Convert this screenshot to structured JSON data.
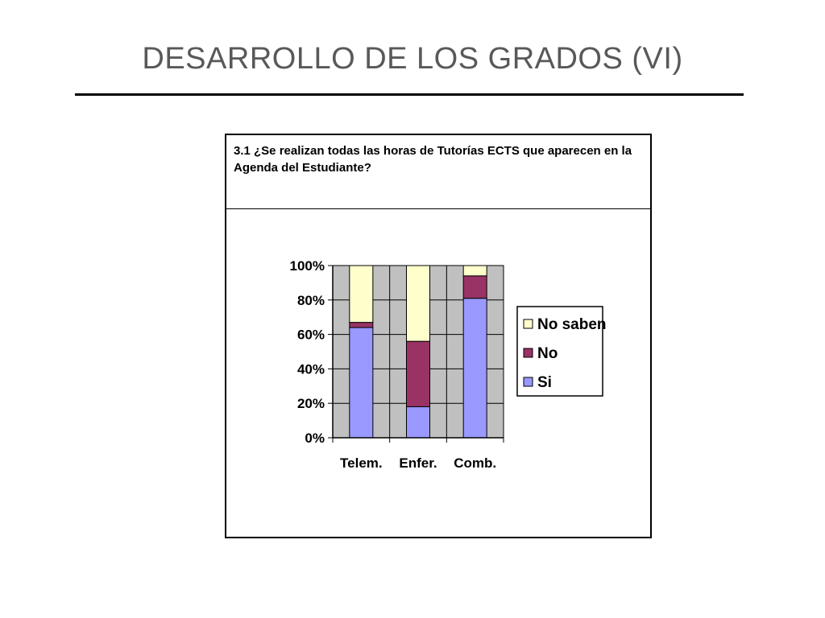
{
  "slide": {
    "title": "DESARROLLO DE LOS GRADOS (VI)"
  },
  "question": {
    "text": "3.1 ¿Se realizan todas las horas de Tutorías ECTS que aparecen en la Agenda del Estudiante?"
  },
  "chart_data": {
    "type": "bar",
    "stacked": true,
    "percent_stacked": true,
    "title": "",
    "xlabel": "",
    "ylabel": "",
    "categories": [
      "Telem.",
      "Enfer.",
      "Comb."
    ],
    "ylim": [
      0,
      100
    ],
    "y_ticks": [
      "0%",
      "20%",
      "40%",
      "60%",
      "80%",
      "100%"
    ],
    "y_tick_values": [
      0,
      20,
      40,
      60,
      80,
      100
    ],
    "grid": true,
    "legend_position": "right",
    "plot_background": "#c0c0c0",
    "series": [
      {
        "name": "Si",
        "values": [
          64,
          18,
          81
        ],
        "color": "#9999ff"
      },
      {
        "name": "No",
        "values": [
          3,
          38,
          13
        ],
        "color": "#993366"
      },
      {
        "name": "No saben",
        "values": [
          33,
          44,
          6
        ],
        "color": "#ffffcc"
      }
    ],
    "legend_order": [
      "No saben",
      "No",
      "Si"
    ]
  }
}
